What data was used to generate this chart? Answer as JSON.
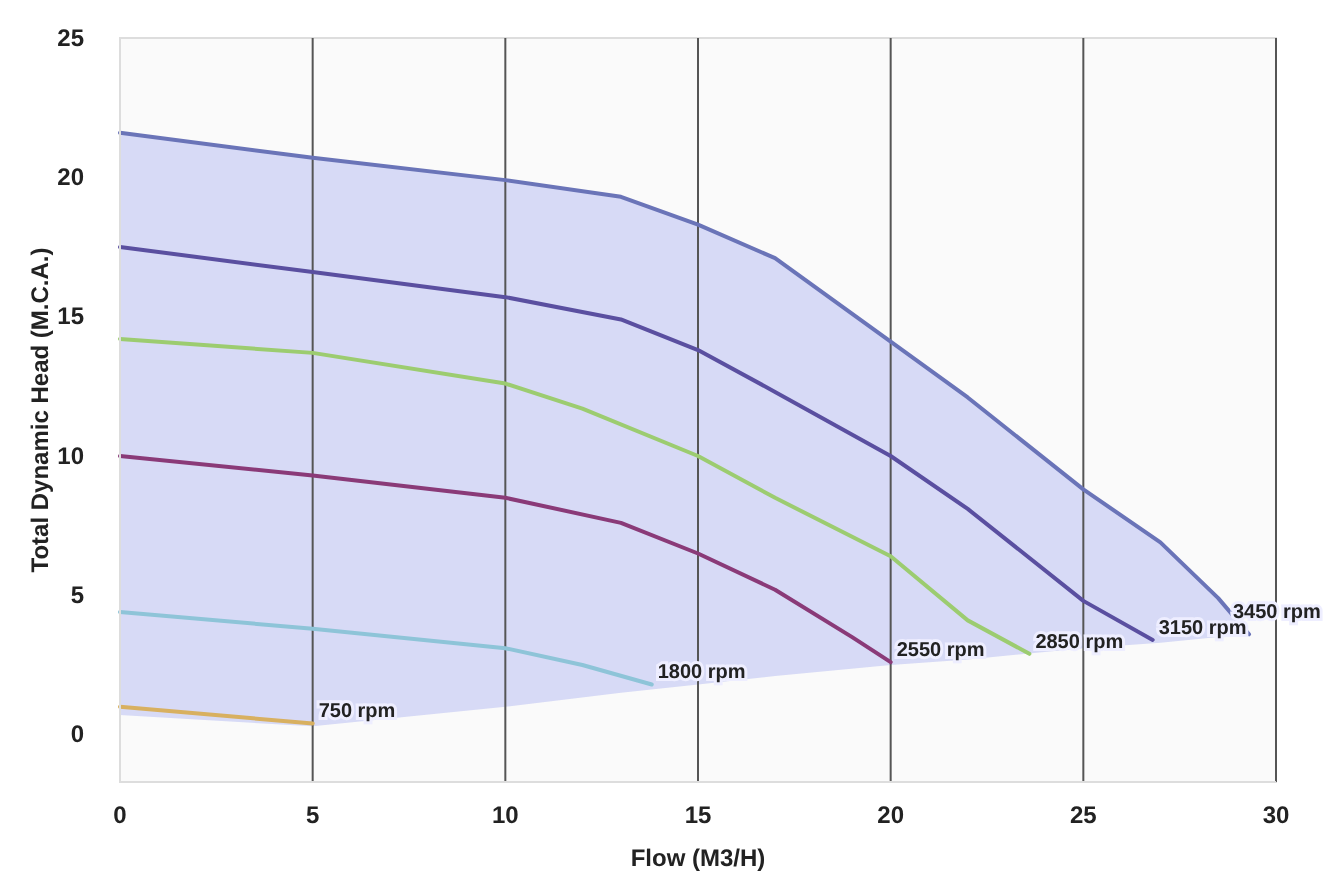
{
  "chart_data": {
    "type": "line",
    "xlabel": "Flow (M3/H)",
    "ylabel": "Total Dynamic Head (M.C.A.)",
    "xlim": [
      0,
      30
    ],
    "ylim": [
      -1.7,
      25
    ],
    "xticks": [
      0,
      5,
      10,
      15,
      20,
      25,
      30
    ],
    "yticks": [
      0,
      5,
      10,
      15,
      20,
      25
    ],
    "grid": "x",
    "marker": "none",
    "line_style": "solid",
    "series": [
      {
        "name": "3450 rpm",
        "color": "#6a74b8",
        "x": [
          0,
          5,
          10,
          13,
          15,
          17,
          20,
          22,
          25,
          27,
          28.5,
          29.3
        ],
        "values": [
          21.6,
          20.7,
          19.9,
          19.3,
          18.3,
          17.1,
          14.1,
          12.1,
          8.8,
          6.9,
          4.9,
          3.6
        ],
        "lower": [
          0.7,
          0.3,
          1.0,
          1.5,
          1.8,
          2.1,
          2.5,
          2.7,
          3.1,
          3.3,
          3.5,
          3.6
        ],
        "upper": [
          21.6,
          20.7,
          19.9,
          19.3,
          18.3,
          17.1,
          14.1,
          12.1,
          8.8,
          6.9,
          4.9,
          3.6
        ]
      },
      {
        "name": "3150 rpm",
        "color": "#5a4fa0",
        "x": [
          0,
          5,
          10,
          13,
          15,
          17,
          20,
          22,
          25,
          26.8
        ],
        "values": [
          17.5,
          16.6,
          15.7,
          14.9,
          13.8,
          12.3,
          10.0,
          8.1,
          4.8,
          3.4
        ]
      },
      {
        "name": "2850 rpm",
        "color": "#9ccc70",
        "x": [
          0,
          5,
          10,
          12,
          15,
          17,
          20,
          22,
          23.6
        ],
        "values": [
          14.2,
          13.7,
          12.6,
          11.7,
          10.0,
          8.5,
          6.4,
          4.1,
          2.9
        ]
      },
      {
        "name": "2550 rpm",
        "color": "#8a3a78",
        "x": [
          0,
          5,
          10,
          13,
          15,
          17,
          19,
          20
        ],
        "values": [
          10.0,
          9.3,
          8.5,
          7.6,
          6.5,
          5.2,
          3.5,
          2.6
        ]
      },
      {
        "name": "1800 rpm",
        "color": "#8ec4d8",
        "x": [
          0,
          5,
          10,
          12,
          13.8
        ],
        "values": [
          4.4,
          3.8,
          3.1,
          2.5,
          1.8
        ]
      },
      {
        "name": "750 rpm",
        "color": "#d8b060",
        "x": [
          0,
          5
        ],
        "values": [
          1.0,
          0.4
        ]
      }
    ]
  }
}
